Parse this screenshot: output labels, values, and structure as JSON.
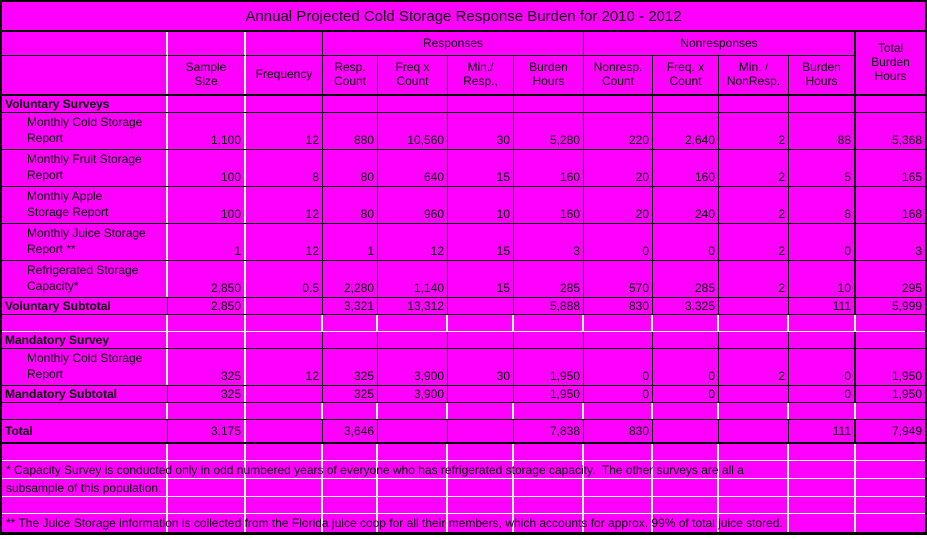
{
  "title": "Annual Projected Cold Storage Response Burden for 2010 - 2012",
  "colors": {
    "table_background": "#FF00FF",
    "grid_line_white": "#FFFFFF",
    "grid_line_black": "#000000",
    "text": "#000000",
    "error_marker_green": "#0B7A0B"
  },
  "header": {
    "groups": {
      "responses": "Responses",
      "nonresponses": "Nonresponses"
    },
    "total_label": "Total\nBurden\nHours",
    "columns": [
      "Sample\nSize",
      "Frequency",
      "Resp.\nCount",
      "Freq x\nCount",
      "Min./\nResp.,",
      "Burden\nHours",
      "Nonresp.\nCount",
      "Freq. x\nCount",
      "Min. /\nNonResp.",
      "Burden\nHours"
    ]
  },
  "table": {
    "rows": [
      {
        "type": "section",
        "label": "Voluntary Surveys",
        "values": [
          "",
          "",
          "",
          "",
          "",
          "",
          "",
          "",
          "",
          "",
          ""
        ]
      },
      {
        "type": "data",
        "label": "Monthly Cold Storage\nReport",
        "values": [
          "1,100",
          "12",
          "880",
          "10,560",
          "30",
          "5,280",
          "220",
          "2,640",
          "2",
          "88",
          "5,368"
        ]
      },
      {
        "type": "data",
        "label": "Monthly Fruit Storage\nReport",
        "values": [
          "100",
          "8",
          "80",
          "640",
          "15",
          "160",
          "20",
          "160",
          "2",
          "5",
          "165"
        ]
      },
      {
        "type": "data",
        "label": "Monthly Apple\nStorage Report",
        "values": [
          "100",
          "12",
          "80",
          "960",
          "10",
          "160",
          "20",
          "240",
          "2",
          "8",
          "168"
        ]
      },
      {
        "type": "data",
        "label": "Monthly Juice Storage\nReport **",
        "marker_col": 2,
        "values": [
          "1",
          "12",
          "1",
          "12",
          "15",
          "3",
          "0",
          "0",
          "2",
          "0",
          "3"
        ]
      },
      {
        "type": "data",
        "label": "Refrigerated Storage\nCapacity*",
        "values": [
          "2,850",
          "0.5",
          "2,280",
          "1,140",
          "15",
          "285",
          "570",
          "285",
          "2",
          "10",
          "295"
        ]
      },
      {
        "type": "subtotal",
        "label": "Voluntary Subtotal",
        "values": [
          "2,850",
          "",
          "3,321",
          "13,312",
          "",
          "5,888",
          "830",
          "3,325",
          "",
          "111",
          "5,999"
        ]
      },
      {
        "type": "spacer",
        "bb": "#ffffff"
      },
      {
        "type": "section",
        "label": "Mandatory Survey",
        "values": [
          "",
          "",
          "",
          "",
          "",
          "",
          "",
          "",
          "",
          "",
          ""
        ]
      },
      {
        "type": "data",
        "label": "Monthly Cold Storage\nReport",
        "values": [
          "325",
          "12",
          "325",
          "3,900",
          "30",
          "1,950",
          "0",
          "0",
          "2",
          "0",
          "1,950"
        ]
      },
      {
        "type": "subtotal",
        "label": "Mandatory Subtotal",
        "values": [
          "325",
          "",
          "325",
          "3,900",
          "",
          "1,950",
          "0",
          "0",
          "",
          "0",
          "1,950"
        ]
      },
      {
        "type": "spacer",
        "bb": "#000000"
      },
      {
        "type": "total",
        "label": "Total",
        "values": [
          "3,175",
          "",
          "3,646",
          "",
          "",
          "7,838",
          "830",
          "",
          "",
          "111",
          "7,949"
        ]
      },
      {
        "type": "spacer",
        "bb": "#ffffff"
      },
      {
        "type": "note",
        "bb": "#ffffff",
        "text": "* Capacity Survey is conducted only in odd numbered years of everyone who has refrigerated storage capacity.  The other surveys are all a"
      },
      {
        "type": "note",
        "bb": "#ffffff",
        "text": "subsample of this population."
      },
      {
        "type": "spacer",
        "bb": "#ffffff"
      },
      {
        "type": "note",
        "text": "** The Juice Storage information is collected from the Florida juice coop for all their members, which accounts for approx. 99% of total juice stored."
      }
    ]
  }
}
